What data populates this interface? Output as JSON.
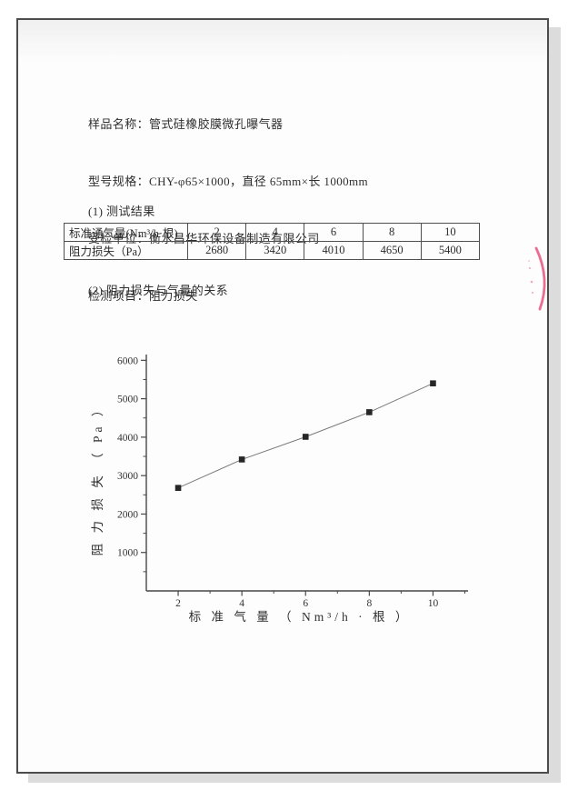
{
  "document": {
    "header_lines": [
      "样品名称：管式硅橡胶膜微孔曝气器",
      "型号规格：CHY-φ65×1000，直径 65mm×长 1000mm",
      "受检单位：衡水昌华环保设备制造有限公司",
      "检测项目：阻力损失"
    ],
    "section1_title": "(1) 测试结果",
    "section2_title": "(2) 阻力损失与气量的关系"
  },
  "table": {
    "rows": [
      {
        "label": "标准通气量(Nm³/h·根)",
        "values": [
          "2",
          "4",
          "6",
          "8",
          "10"
        ]
      },
      {
        "label": "阻力损失（Pa）",
        "values": [
          "2680",
          "3420",
          "4010",
          "4650",
          "5400"
        ]
      }
    ]
  },
  "chart_data": {
    "type": "line",
    "x": [
      2,
      4,
      6,
      8,
      10
    ],
    "series": [
      {
        "name": "阻力损失",
        "values": [
          2680,
          3420,
          4010,
          4650,
          5400
        ]
      }
    ],
    "title": "",
    "xlabel": "标 准 气 量 （ Nm³/h · 根 ）",
    "ylabel": "阻 力 损 失 （ Pa ）",
    "xlim": [
      1,
      11.1
    ],
    "ylim": [
      0,
      6150
    ],
    "x_major_ticks": [
      2,
      4,
      6,
      8,
      10
    ],
    "x_minor_ticks": [
      3,
      5,
      7,
      9,
      11
    ],
    "y_major_ticks": [
      1000,
      2000,
      3000,
      4000,
      5000,
      6000
    ],
    "y_minor_ticks": [
      500,
      1500,
      2500,
      3500,
      4500,
      5500
    ],
    "marker": "square",
    "grid": false,
    "legend_position": "none",
    "colors": {
      "axis": "#474747",
      "tick_text": "#333333",
      "line": "#7a7a7a",
      "marker": "#262626"
    }
  },
  "annotations": {
    "red_pen_mark": {
      "color": "#e8537f"
    }
  }
}
